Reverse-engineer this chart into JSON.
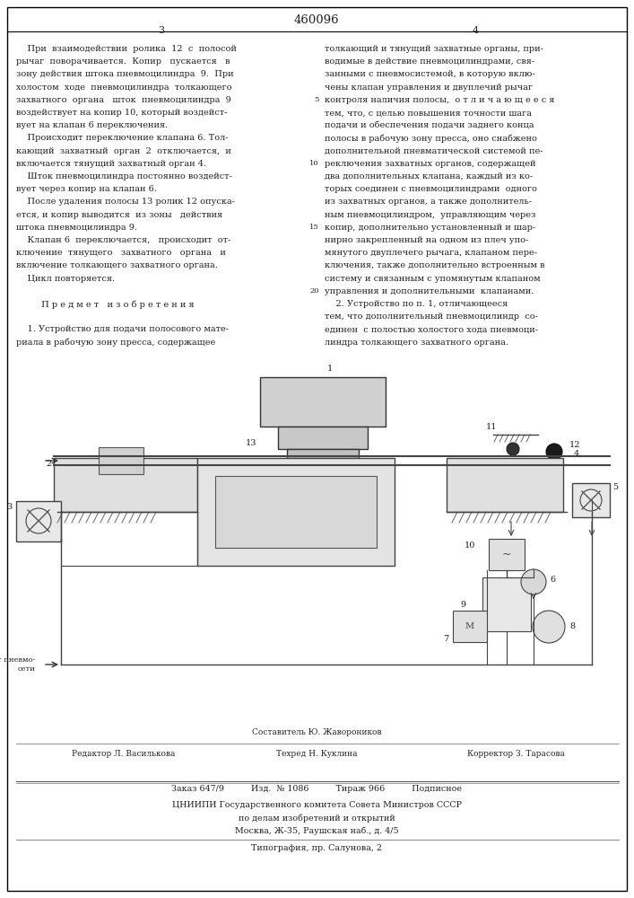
{
  "patent_number": "460096",
  "page_numbers": [
    "3",
    "4"
  ],
  "border_color": "#000000",
  "background_color": "#ffffff",
  "text_color": "#222222",
  "font_size_body": 7.0,
  "font_size_patent": 9.0,
  "left_column_text": [
    "    При  взаимодействии  ролика  12  с  полосой",
    "рычаг  поворачивается.  Копир   пускается   в",
    "зону действия штока пневмоцилиндра  9.  При",
    "холостом  ходе  пневмоцилиндра  толкающего",
    "захватного  органа   шток  пневмоцилиндра  9",
    "воздействует на копир 10, который воздейст-",
    "вует на клапан 6 переключения.",
    "    Происходит переключение клапана 6. Тол-",
    "кающий  захватный  орган  2  отключается,  и",
    "включается тянущий захватный орган 4.",
    "    Шток пневмоцилиндра постоянно воздейст-",
    "вует через копир на клапан 6.",
    "    После удаления полосы 13 ролик 12 опуска-",
    "ется, и копир выводится  из зоны   действия",
    "штока пневмоцилиндра 9.",
    "    Клапан 6  переключается,   происходит  от-",
    "ключение  тянущего   захватного   органа   и",
    "включение толкающего захватного органа.",
    "    Цикл повторяется.",
    "",
    "         П р е д м е т   и з о б р е т е н и я",
    "",
    "    1. Устройство для подачи полосового мате-",
    "риала в рабочую зону пресса, содержащее"
  ],
  "right_column_lines": [
    "толкающий и тянущий захватные органы, при-",
    "водимые в действие пневмоцилиндрами, свя-",
    "занными с пневмосистемой, в которую вклю-",
    "чены клапан управления и двуплечий рычаг",
    "контроля наличия полосы,  о т л и ч а ю щ е е с я",
    "тем, что, с целью повышения точности шага",
    "подачи и обеспечения подачи заднего конца",
    "полосы в рабочую зону пресса, оно снабжено",
    "дополнительной пневматической системой пе-",
    "реключения захватных органов, содержащей",
    "два дополнительных клапана, каждый из ко-",
    "торых соединен с пневмоцилиндрами  одного",
    "из захватных органов, а также дополнитель-",
    "ным пневмоцилиндром,  управляющим через",
    "копир, дополнительно установленный и шар-",
    "нирно закрепленный на одном из плеч упо-",
    "мянутого двуплечего рычага, клапаном пере-",
    "ключения, также дополнительно встроенным в",
    "систему и связанным с упомянутым клапаном",
    "управления и дополнительными  клапанами.",
    "    2. Устройство по п. 1, отличающееся",
    "тем, что дополнительный пневмоцилиндр  со-",
    "единен  с полостью холостого хода пневмоци-",
    "линдра толкающего захватного органа."
  ],
  "line_numbers": {
    "5": 5,
    "10": 10,
    "15": 15,
    "20": 20
  },
  "footer_row1_left": "Редактор Л. Василькова",
  "footer_row1_center": "Составитель Ю. Жавороников",
  "footer_row1_right": "Корректор З. Тарасова",
  "footer_row1b_center": "Техред Н. Куклина",
  "footer_row2": "Заказ 647/9          Изд.  № 1086          Тираж 966          Подписное",
  "footer_row3": "ЦНИИПИ Государственного комитета Совета Министров СССР",
  "footer_row4": "по делам изобретений и открытий",
  "footer_row5": "Москва, Ж-35, Раушская наб., д. 4/5",
  "footer_row6": "Типография, пр. Салунова, 2"
}
